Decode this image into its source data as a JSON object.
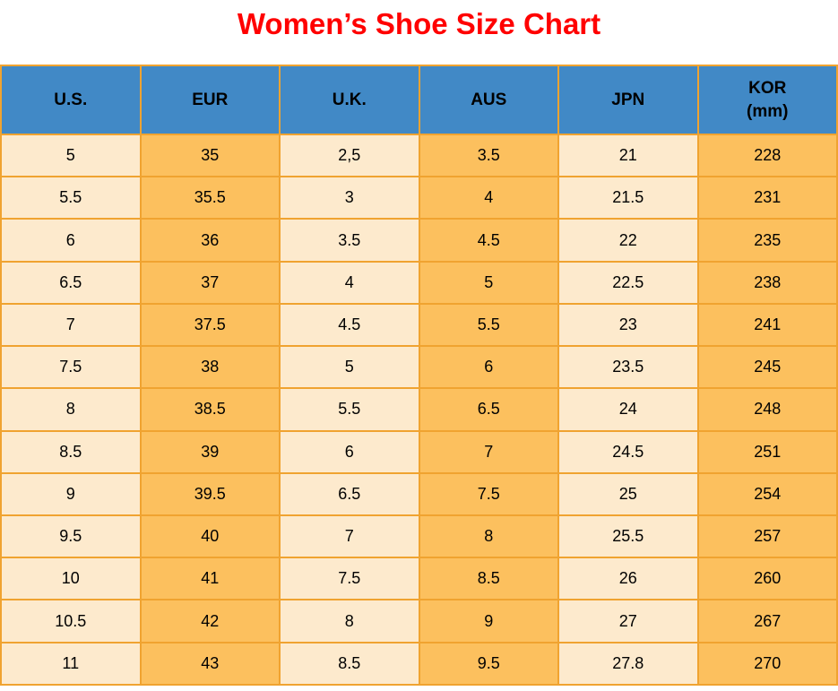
{
  "title": "Women’s Shoe Size Chart",
  "chart_data": {
    "type": "table",
    "title": "Women’s Shoe Size Chart",
    "columns": [
      {
        "id": "us",
        "lines": [
          "U.S."
        ]
      },
      {
        "id": "eur",
        "lines": [
          "EUR"
        ]
      },
      {
        "id": "uk",
        "lines": [
          "U.K."
        ]
      },
      {
        "id": "aus",
        "lines": [
          "AUS"
        ]
      },
      {
        "id": "jpn",
        "lines": [
          "JPN"
        ]
      },
      {
        "id": "kor",
        "lines": [
          "KOR",
          "(mm)"
        ]
      }
    ],
    "rows": [
      [
        "5",
        "35",
        "2,5",
        "3.5",
        "21",
        "228"
      ],
      [
        "5.5",
        "35.5",
        "3",
        "4",
        "21.5",
        "231"
      ],
      [
        "6",
        "36",
        "3.5",
        "4.5",
        "22",
        "235"
      ],
      [
        "6.5",
        "37",
        "4",
        "5",
        "22.5",
        "238"
      ],
      [
        "7",
        "37.5",
        "4.5",
        "5.5",
        "23",
        "241"
      ],
      [
        "7.5",
        "38",
        "5",
        "6",
        "23.5",
        "245"
      ],
      [
        "8",
        "38.5",
        "5.5",
        "6.5",
        "24",
        "248"
      ],
      [
        "8.5",
        "39",
        "6",
        "7",
        "24.5",
        "251"
      ],
      [
        "9",
        "39.5",
        "6.5",
        "7.5",
        "25",
        "254"
      ],
      [
        "9.5",
        "40",
        "7",
        "8",
        "25.5",
        "257"
      ],
      [
        "10",
        "41",
        "7.5",
        "8.5",
        "26",
        "260"
      ],
      [
        "10.5",
        "42",
        "8",
        "9",
        "27",
        "267"
      ],
      [
        "11",
        "43",
        "8.5",
        "9.5",
        "27.8",
        "270"
      ]
    ]
  },
  "colors": {
    "title_red": "#ff0000",
    "header_bg": "#4189c6",
    "cell_cream": "#fdeacd",
    "cell_orange": "#fcc05e",
    "grid_border": "#f0a330",
    "text": "#000000",
    "page_bg": "#ffffff"
  }
}
